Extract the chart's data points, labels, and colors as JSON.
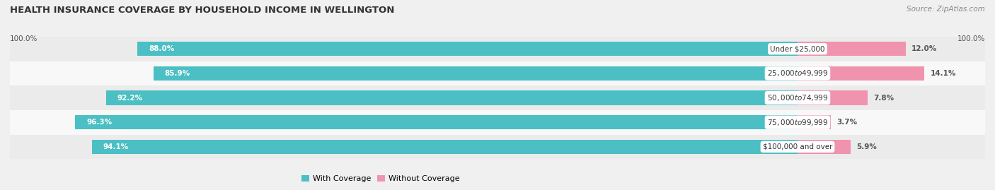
{
  "title": "HEALTH INSURANCE COVERAGE BY HOUSEHOLD INCOME IN WELLINGTON",
  "source": "Source: ZipAtlas.com",
  "categories": [
    "Under $25,000",
    "$25,000 to $49,999",
    "$50,000 to $74,999",
    "$75,000 to $99,999",
    "$100,000 and over"
  ],
  "with_coverage": [
    88.0,
    85.9,
    92.2,
    96.3,
    94.1
  ],
  "without_coverage": [
    12.0,
    14.1,
    7.8,
    3.7,
    5.9
  ],
  "coverage_color": "#4bbfc3",
  "no_coverage_color": "#f093ae",
  "label_color_coverage": "#ffffff",
  "label_color_no_coverage": "#555555",
  "row_bg_colors": [
    "#ebebeb",
    "#f8f8f8",
    "#ebebeb",
    "#f8f8f8",
    "#ebebeb"
  ],
  "title_fontsize": 9.5,
  "source_fontsize": 7.5,
  "bar_label_fontsize": 7.5,
  "category_fontsize": 7.5,
  "axis_label_fontsize": 7.5,
  "legend_fontsize": 8,
  "x_left_label": "100.0%",
  "x_right_label": "100.0%",
  "bar_height": 0.58,
  "xlim_left": -105,
  "xlim_right": 25
}
